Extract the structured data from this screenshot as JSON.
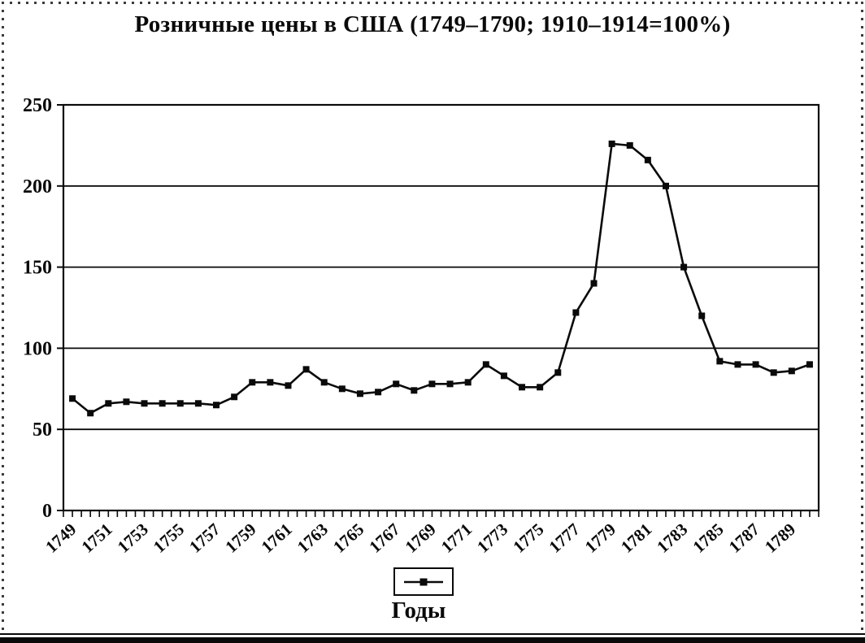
{
  "header": {
    "title": "Розничные цены в США (1749–1790; 1910–1914=100%)"
  },
  "axis_caption": "Годы",
  "legend": {
    "label": "",
    "marker": "filled-square-on-line",
    "position": "bottom"
  },
  "colors": {
    "line": "#0a0a0a",
    "marker": "#0a0a0a",
    "axis": "#0a0a0a",
    "background": "#ffffff"
  },
  "chart_data": {
    "type": "line",
    "title": "Розничные цены в США (1749–1790; 1910–1914=100%)",
    "xlabel": "Годы",
    "ylabel": "",
    "ylim": [
      0,
      250
    ],
    "yticks": [
      0,
      50,
      100,
      150,
      200,
      250
    ],
    "grid": "horizontal",
    "legend_position": "bottom",
    "marker": "square",
    "x_tick_labels": [
      "1749",
      "1751",
      "1753",
      "1755",
      "1757",
      "1759",
      "1761",
      "1763",
      "1765",
      "1767",
      "1769",
      "1771",
      "1773",
      "1775",
      "1777",
      "1779",
      "1781",
      "1783",
      "1785",
      "1787",
      "1789"
    ],
    "x": [
      1749,
      1750,
      1751,
      1752,
      1753,
      1754,
      1755,
      1756,
      1757,
      1758,
      1759,
      1760,
      1761,
      1762,
      1763,
      1764,
      1765,
      1766,
      1767,
      1768,
      1769,
      1770,
      1771,
      1772,
      1773,
      1774,
      1775,
      1776,
      1777,
      1778,
      1779,
      1780,
      1781,
      1782,
      1783,
      1784,
      1785,
      1786,
      1787,
      1788,
      1789,
      1790
    ],
    "series": [
      {
        "name": "",
        "values": [
          69,
          60,
          66,
          67,
          66,
          66,
          66,
          66,
          65,
          70,
          79,
          79,
          77,
          87,
          79,
          75,
          72,
          73,
          78,
          74,
          78,
          78,
          79,
          90,
          83,
          76,
          76,
          85,
          122,
          140,
          226,
          225,
          216,
          200,
          150,
          120,
          92,
          90,
          90,
          85,
          86,
          90
        ]
      }
    ]
  }
}
